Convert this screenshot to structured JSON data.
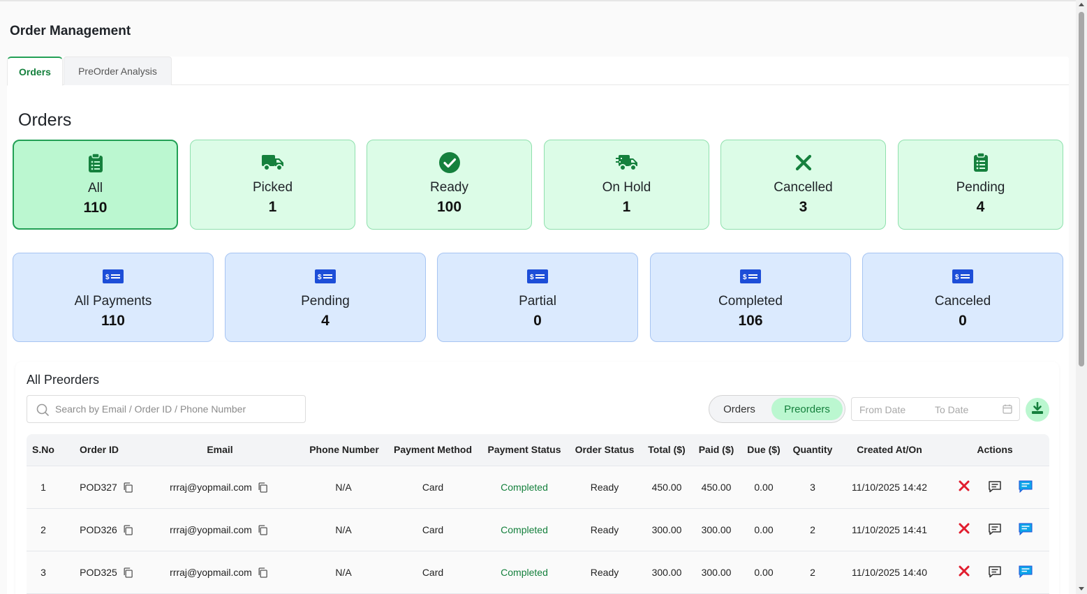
{
  "page": {
    "title": "Order Management"
  },
  "tabs": [
    {
      "label": "Orders",
      "active": true
    },
    {
      "label": "PreOrder Analysis",
      "active": false
    }
  ],
  "section_title": "Orders",
  "order_cards": [
    {
      "icon": "clipboard-list-icon",
      "label": "All",
      "count": "110",
      "active": true
    },
    {
      "icon": "truck-icon",
      "label": "Picked",
      "count": "1"
    },
    {
      "icon": "check-circle-icon",
      "label": "Ready",
      "count": "100"
    },
    {
      "icon": "truck-fast-icon",
      "label": "On Hold",
      "count": "1"
    },
    {
      "icon": "x-mark-icon",
      "label": "Cancelled",
      "count": "3"
    },
    {
      "icon": "clipboard-list-icon",
      "label": "Pending",
      "count": "4"
    }
  ],
  "payment_cards": [
    {
      "icon": "money-check-icon",
      "label": "All Payments",
      "count": "110"
    },
    {
      "icon": "money-check-icon",
      "label": "Pending",
      "count": "4"
    },
    {
      "icon": "money-check-icon",
      "label": "Partial",
      "count": "0"
    },
    {
      "icon": "money-check-icon",
      "label": "Completed",
      "count": "106"
    },
    {
      "icon": "money-check-icon",
      "label": "Canceled",
      "count": "0"
    }
  ],
  "list": {
    "title": "All Preorders",
    "search": {
      "placeholder": "Search by Email / Order ID / Phone Number",
      "value": ""
    },
    "toggle": {
      "options": [
        "Orders",
        "Preorders"
      ],
      "selected": "Preorders"
    },
    "date_range": {
      "from_placeholder": "From Date",
      "to_placeholder": "To Date"
    }
  },
  "table": {
    "columns": [
      "S.No",
      "Order ID",
      "Email",
      "Phone Number",
      "Payment Method",
      "Payment Status",
      "Order Status",
      "Total ($)",
      "Paid ($)",
      "Due ($)",
      "Quantity",
      "Created At/On",
      "Actions"
    ],
    "rows": [
      {
        "sno": "1",
        "order_id": "POD327",
        "email": "rrraj@yopmail.com",
        "phone": "N/A",
        "payment_method": "Card",
        "payment_status": "Completed",
        "order_status": "Ready",
        "total": "450.00",
        "paid": "450.00",
        "due": "0.00",
        "quantity": "3",
        "created": "11/10/2025 14:42"
      },
      {
        "sno": "2",
        "order_id": "POD326",
        "email": "rrraj@yopmail.com",
        "phone": "N/A",
        "payment_method": "Card",
        "payment_status": "Completed",
        "order_status": "Ready",
        "total": "300.00",
        "paid": "300.00",
        "due": "0.00",
        "quantity": "2",
        "created": "11/10/2025 14:41"
      },
      {
        "sno": "3",
        "order_id": "POD325",
        "email": "rrraj@yopmail.com",
        "phone": "N/A",
        "payment_method": "Card",
        "payment_status": "Completed",
        "order_status": "Ready",
        "total": "300.00",
        "paid": "300.00",
        "due": "0.00",
        "quantity": "2",
        "created": "11/10/2025 14:40"
      }
    ]
  },
  "colors": {
    "accent_green": "#15803d",
    "card_green": "#dcfce7",
    "card_blue": "#dbeafe",
    "icon_blue": "#1d4ed8",
    "cancel_red": "#e11d2e",
    "chat_blue": "#0ea5e9"
  }
}
